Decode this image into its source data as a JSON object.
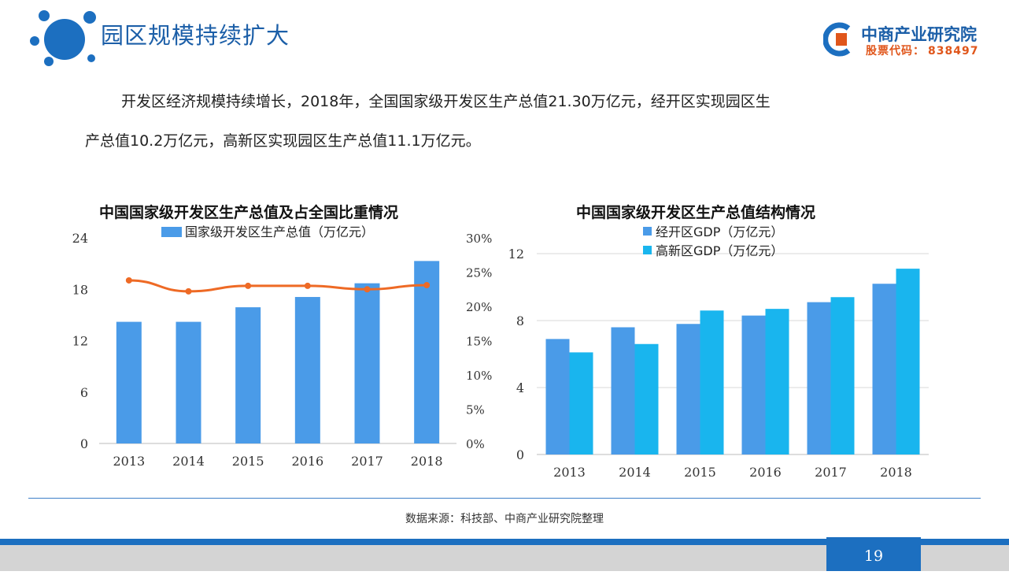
{
  "header": {
    "title": "园区规模持续扩大",
    "brand_name": "中商产业研究院",
    "brand_code_label": "股票代码：",
    "brand_code": "838497"
  },
  "intro": {
    "line1": "开发区经济规模持续增长，2018年，全国国家级开发区生产总值21.30万亿元，经开区实现园区生",
    "line2": "产总值10.2万亿元，高新区实现园区生产总值11.1万亿元。"
  },
  "chart_data": [
    {
      "type": "bar",
      "title": "中国国家级开发区生产总值及占全国比重情况",
      "categories": [
        "2013",
        "2014",
        "2015",
        "2016",
        "2017",
        "2018"
      ],
      "series": [
        {
          "name": "国家级开发区生产总值（万亿元）",
          "type": "bar",
          "axis": "left",
          "color": "#4a9be8",
          "values": [
            14.2,
            14.2,
            15.9,
            17.1,
            18.7,
            21.3
          ]
        },
        {
          "name": "",
          "type": "line",
          "axis": "right",
          "color": "#ee6a25",
          "values": [
            23.8,
            22.2,
            23.0,
            23.0,
            22.5,
            23.1
          ]
        }
      ],
      "ylim": [
        0,
        24
      ],
      "yticks": [
        "0",
        "6",
        "12",
        "18",
        "24"
      ],
      "y2lim": [
        0,
        30
      ],
      "y2ticks": [
        "0%",
        "5%",
        "10%",
        "15%",
        "20%",
        "25%",
        "30%"
      ],
      "grid": false,
      "legend": "top-center"
    },
    {
      "type": "bar",
      "title": "中国国家级开发区生产总值结构情况",
      "categories": [
        "2013",
        "2014",
        "2015",
        "2016",
        "2017",
        "2018"
      ],
      "series": [
        {
          "name": "经开区GDP（万亿元）",
          "color": "#4a9be8",
          "values": [
            6.9,
            7.6,
            7.8,
            8.3,
            9.1,
            10.2
          ]
        },
        {
          "name": "高新区GDP（万亿元）",
          "color": "#19b5ee",
          "values": [
            6.1,
            6.6,
            8.6,
            8.7,
            9.4,
            11.1
          ]
        }
      ],
      "ylim": [
        0,
        12
      ],
      "yticks": [
        "0",
        "4",
        "8",
        "12"
      ],
      "grid": true,
      "legend": "top-center"
    }
  ],
  "source": "数据来源：科技部、中商产业研究院整理",
  "page_number": "19",
  "colors": {
    "brand_blue": "#1c5fa8",
    "accent_orange": "#e0561b",
    "footer_blue": "#1c6fc0"
  }
}
